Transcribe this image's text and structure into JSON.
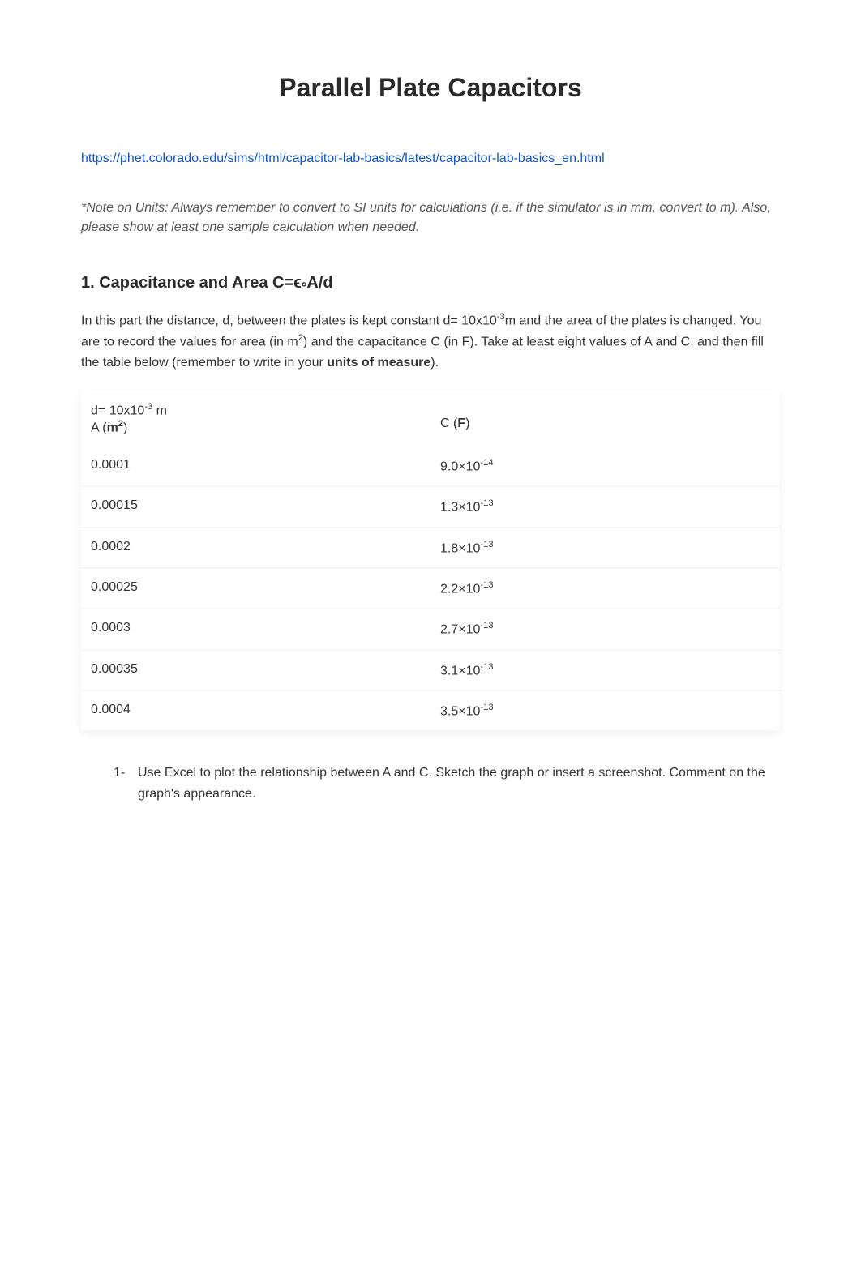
{
  "title": "Parallel Plate Capacitors",
  "link": "https://phet.colorado.edu/sims/html/capacitor-lab-basics/latest/capacitor-lab-basics_en.html",
  "note": "*Note on Units:  Always remember to convert to SI units for calculations (i.e. if the simulator is in mm, convert to m). Also, please show at least one sample calculation when needed.",
  "section1": {
    "heading_prefix": "1.  Capacitance and Area C=",
    "heading_symbol": "ϵ",
    "heading_subscript": "°",
    "heading_suffix": "A/d",
    "intro_p1": "In this part the distance, d, between the plates is kept constant d= 10x10",
    "intro_exp1": "-3",
    "intro_p2": "m and the area of the plates is changed. You are to record the values for area (in m",
    "intro_exp2": "2",
    "intro_p3": ") and the capacitance C (in F). Take at least eight values of A and C, and then fill the table below (remember to write in your ",
    "intro_bold": "units of measure",
    "intro_p4": ")."
  },
  "table": {
    "header": {
      "d_label": "d= 10x10",
      "d_exp": "-3",
      "d_unit": " m",
      "a_label": "A (",
      "a_unit": "m",
      "a_exp": "2",
      "a_close": ")",
      "c_label": "C (",
      "c_unit": "F",
      "c_close": ")"
    },
    "rows": [
      {
        "a": "0.0001",
        "c_base": "9.0×10",
        "c_exp": "-14"
      },
      {
        "a": "0.00015",
        "c_base": "1.3×10",
        "c_exp": "-13"
      },
      {
        "a": "0.0002",
        "c_base": "1.8×10",
        "c_exp": "-13"
      },
      {
        "a": "0.00025",
        "c_base": "2.2×10",
        "c_exp": "-13"
      },
      {
        "a": "0.0003",
        "c_base": "2.7×10",
        "c_exp": "-13"
      },
      {
        "a": "0.00035",
        "c_base": "3.1×10",
        "c_exp": "-13"
      },
      {
        "a": "0.0004",
        "c_base": "3.5×10",
        "c_exp": "-13"
      }
    ]
  },
  "question1": {
    "num": "1-",
    "text": "Use Excel to plot the relationship between A and C.  Sketch the graph or insert a screenshot. Comment on the graph's appearance."
  },
  "colors": {
    "link": "#1155cc",
    "text": "#333333",
    "heading": "#2a2a2a",
    "note": "#555555",
    "row_border": "#f6f6f6",
    "bg": "#ffffff"
  },
  "fonts": {
    "title_size": 32,
    "section_head_size": 20,
    "body_size": 16
  }
}
